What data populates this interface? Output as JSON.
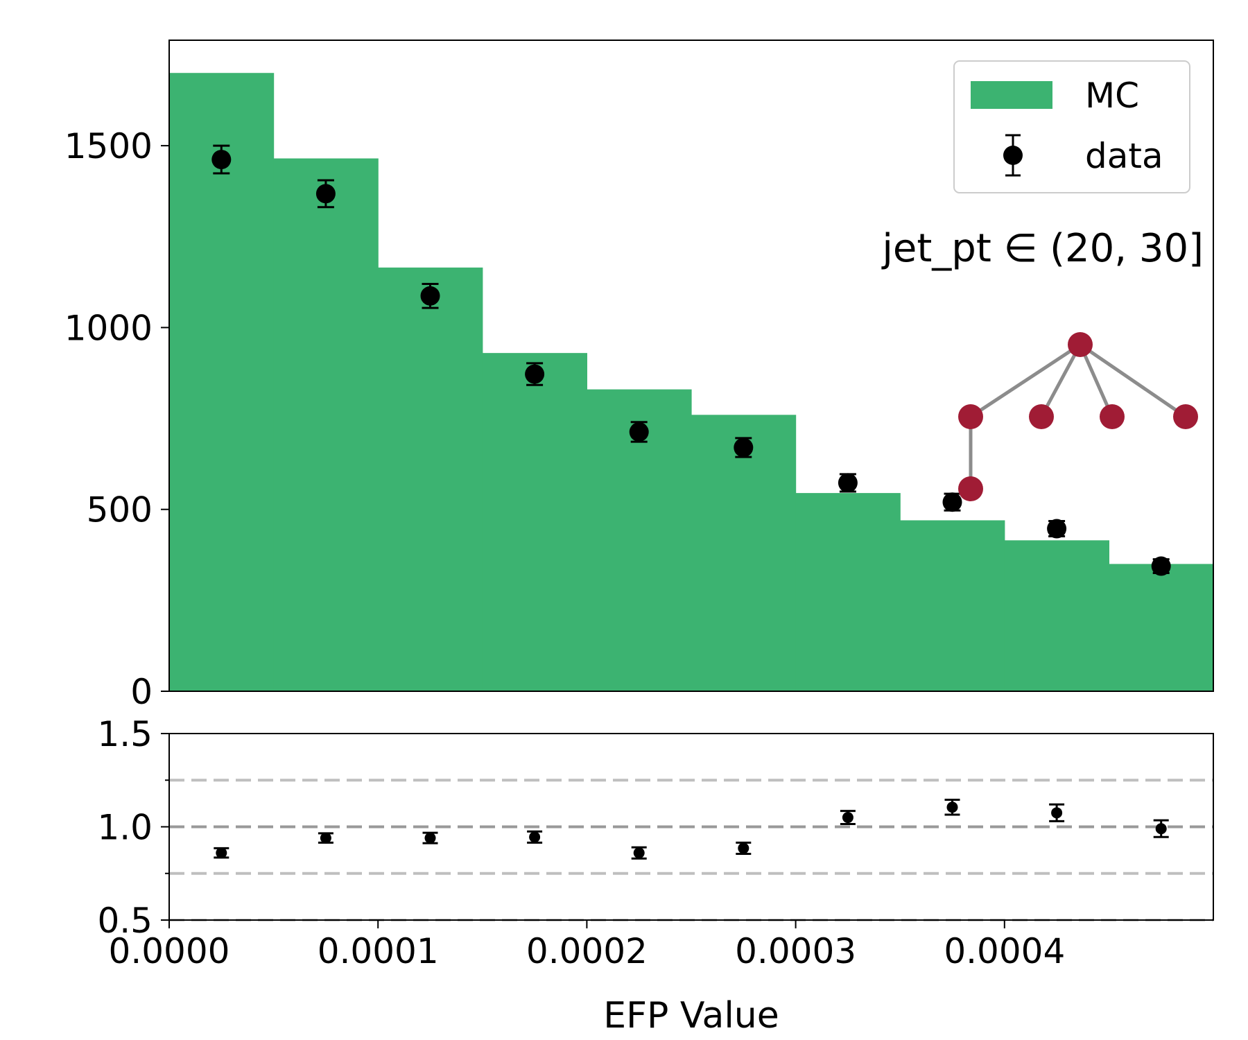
{
  "chart_data": [
    {
      "type": "bar",
      "panel": "main",
      "x_bins": [
        0.0,
        5e-05,
        0.0001,
        0.00015,
        0.0002,
        0.00025,
        0.0003,
        0.00035,
        0.0004,
        0.00045,
        0.0005
      ],
      "xlim": [
        0.0,
        0.0005
      ],
      "ylim": [
        0,
        1790
      ],
      "yticks": [
        0,
        500,
        1000,
        1500
      ],
      "ytick_labels": [
        "0",
        "500",
        "1000",
        "1500"
      ],
      "grid": false,
      "legend_position": "top-right",
      "series": [
        {
          "name": "MC",
          "kind": "step-histogram",
          "color": "#3cb371",
          "values": [
            1700,
            1465,
            1165,
            930,
            830,
            760,
            545,
            470,
            415,
            350
          ]
        },
        {
          "name": "data",
          "kind": "errorbar",
          "color": "#000000",
          "x": [
            2.5e-05,
            7.5e-05,
            0.000125,
            0.000175,
            0.000225,
            0.000275,
            0.000325,
            0.000375,
            0.000425,
            0.000475
          ],
          "values": [
            1462,
            1368,
            1087,
            872,
            713,
            670,
            573,
            520,
            447,
            344
          ],
          "errors": [
            38,
            37,
            33,
            30,
            27,
            26,
            24,
            23,
            21,
            19
          ]
        }
      ],
      "annotation": "jet_pt ∈ (20, 30]",
      "inset_graph": {
        "node_color": "#a01c35",
        "edge_color": "#8c8c8c",
        "nodes": 6,
        "edges": 5,
        "description_visible": false
      }
    },
    {
      "type": "scatter",
      "panel": "ratio",
      "xlim": [
        0.0,
        0.0005
      ],
      "ylim": [
        0.5,
        1.5
      ],
      "yticks": [
        0.5,
        1.0,
        1.5
      ],
      "ytick_labels": [
        "0.5",
        "1.0",
        "1.5"
      ],
      "xticks": [
        0.0,
        0.0001,
        0.0002,
        0.0003,
        0.0004
      ],
      "xtick_labels": [
        "0.0000",
        "0.0001",
        "0.0002",
        "0.0003",
        "0.0004"
      ],
      "xlabel": "EFP Value",
      "reference_lines": [
        {
          "y": 1.0,
          "color": "#999999"
        },
        {
          "y": 1.25,
          "color": "#bfbfbf"
        },
        {
          "y": 0.75,
          "color": "#bfbfbf"
        },
        {
          "y": 0.5,
          "color": "#bfbfbf"
        }
      ],
      "series": [
        {
          "kind": "errorbar",
          "color": "#000000",
          "x": [
            2.5e-05,
            7.5e-05,
            0.000125,
            0.000175,
            0.000225,
            0.000275,
            0.000325,
            0.000375,
            0.000425,
            0.000475
          ],
          "values": [
            0.86,
            0.94,
            0.94,
            0.945,
            0.86,
            0.885,
            1.05,
            1.105,
            1.075,
            0.99
          ],
          "errors": [
            0.025,
            0.025,
            0.028,
            0.03,
            0.03,
            0.03,
            0.035,
            0.04,
            0.045,
            0.045
          ]
        }
      ]
    }
  ]
}
